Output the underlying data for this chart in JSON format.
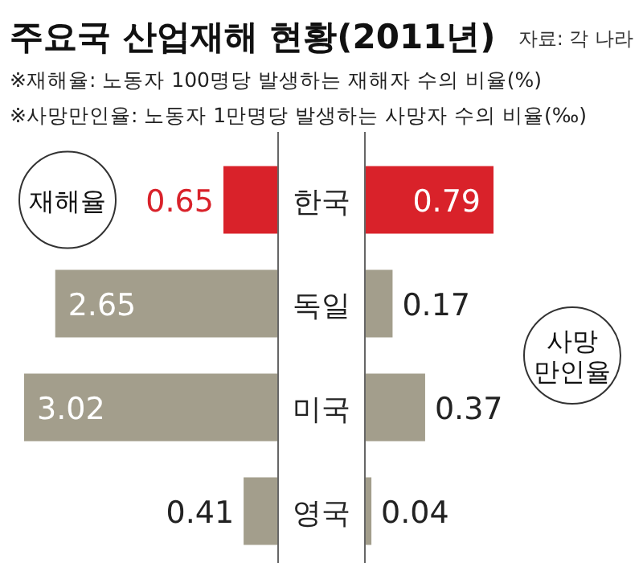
{
  "chart_data": [
    {
      "type": "bar",
      "orientation": "horizontal",
      "title": "주요국 산업재해 현황(2011년)",
      "annotations": [
        "자료: 각 나라",
        "※재해율: 노동자 100명당 발생하는 재해자 수의 비율(%)",
        "※사망만인율: 노동자 1만명당 발생하는 사망자 수의 비율(‰)"
      ],
      "xlabel": "재해율",
      "categories": [
        "한국",
        "독일",
        "미국",
        "영국"
      ],
      "values": [
        0.65,
        2.65,
        3.02,
        0.41
      ],
      "colors": [
        "#d9222a",
        "#a39e8c",
        "#a39e8c",
        "#a39e8c"
      ],
      "data_labels": true,
      "tick_labels": "y"
    },
    {
      "type": "bar",
      "orientation": "horizontal",
      "xlabel": "사망 만인율",
      "categories": [
        null,
        null,
        null,
        null
      ],
      "values": [
        0.79,
        0.17,
        0.37,
        0.04
      ],
      "colors": [
        "#d9222a",
        "#a39e8c",
        "#a39e8c",
        "#a39e8c"
      ],
      "data_labels": true
    }
  ]
}
